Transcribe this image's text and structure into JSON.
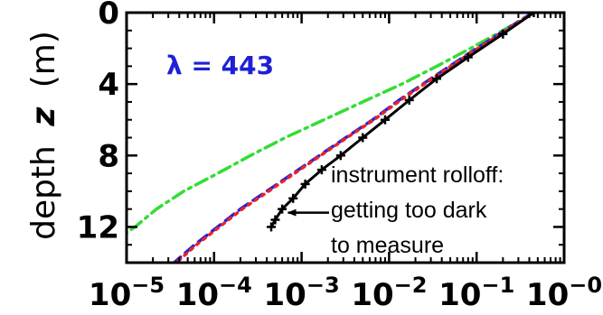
{
  "chart_data": {
    "type": "line",
    "title": "",
    "xlabel": "",
    "ylabel_prefix": "depth",
    "ylabel_symbol": "z",
    "ylabel_unit": "(m)",
    "x_scale": "log",
    "xlim": [
      1e-05,
      1
    ],
    "ylim": [
      14,
      0
    ],
    "y_inverted": true,
    "grid": false,
    "x_ticks": [
      {
        "value": 1e-05,
        "base": "10",
        "exp": "−5"
      },
      {
        "value": 0.0001,
        "base": "10",
        "exp": "−4"
      },
      {
        "value": 0.001,
        "base": "10",
        "exp": "−3"
      },
      {
        "value": 0.01,
        "base": "10",
        "exp": "−2"
      },
      {
        "value": 0.1,
        "base": "10",
        "exp": "−1"
      },
      {
        "value": 1,
        "base": "10",
        "exp": "−0"
      }
    ],
    "y_ticks": [
      {
        "value": 0,
        "label": "0"
      },
      {
        "value": 4,
        "label": "4"
      },
      {
        "value": 8,
        "label": "8"
      },
      {
        "value": 12,
        "label": "12"
      }
    ],
    "inset_label": {
      "text": "λ = 443",
      "color": "#1f1fd9"
    },
    "annotation": {
      "lines": [
        "instrument rolloff:",
        "getting too dark",
        "to measure"
      ],
      "arrow_target": {
        "x": 0.0007,
        "y": 11.2
      }
    },
    "series": [
      {
        "style": "dash-dot",
        "color": "#33dd33",
        "points": [
          {
            "x": 0.45,
            "y": 0
          },
          {
            "x": 0.2,
            "y": 1
          },
          {
            "x": 0.085,
            "y": 2
          },
          {
            "x": 0.035,
            "y": 3
          },
          {
            "x": 0.014,
            "y": 4
          },
          {
            "x": 0.005,
            "y": 5
          },
          {
            "x": 0.0018,
            "y": 6
          },
          {
            "x": 0.00065,
            "y": 7
          },
          {
            "x": 0.00026,
            "y": 8
          },
          {
            "x": 0.00011,
            "y": 9
          },
          {
            "x": 4.5e-05,
            "y": 10
          },
          {
            "x": 2.2e-05,
            "y": 11
          },
          {
            "x": 1.25e-05,
            "y": 12
          },
          {
            "x": 8.2e-06,
            "y": 12.6
          }
        ]
      },
      {
        "style": "dashed",
        "color": "#2222dd",
        "points": [
          {
            "x": 0.44,
            "y": 0
          },
          {
            "x": 0.18,
            "y": 1.2
          },
          {
            "x": 0.07,
            "y": 2.5
          },
          {
            "x": 0.03,
            "y": 3.7
          },
          {
            "x": 0.013,
            "y": 4.9
          },
          {
            "x": 0.0065,
            "y": 6
          },
          {
            "x": 0.0032,
            "y": 7
          },
          {
            "x": 0.0016,
            "y": 8
          },
          {
            "x": 0.0008,
            "y": 9
          },
          {
            "x": 0.0004,
            "y": 10
          },
          {
            "x": 0.0002,
            "y": 11
          },
          {
            "x": 0.00011,
            "y": 12
          },
          {
            "x": 6e-05,
            "y": 13
          },
          {
            "x": 3.5e-05,
            "y": 14
          }
        ]
      },
      {
        "style": "dotted",
        "color": "#ee2222",
        "points": [
          {
            "x": 0.45,
            "y": 0
          },
          {
            "x": 0.185,
            "y": 1.2
          },
          {
            "x": 0.072,
            "y": 2.5
          },
          {
            "x": 0.031,
            "y": 3.7
          },
          {
            "x": 0.0135,
            "y": 4.9
          },
          {
            "x": 0.0067,
            "y": 6
          },
          {
            "x": 0.0033,
            "y": 7
          },
          {
            "x": 0.00165,
            "y": 8
          },
          {
            "x": 0.00083,
            "y": 9
          },
          {
            "x": 0.00042,
            "y": 10
          },
          {
            "x": 0.00021,
            "y": 11
          },
          {
            "x": 0.000115,
            "y": 12
          },
          {
            "x": 6.3e-05,
            "y": 13
          },
          {
            "x": 3.7e-05,
            "y": 14
          }
        ]
      },
      {
        "style": "solid-markers",
        "color": "#000000",
        "points": [
          {
            "x": 0.45,
            "y": 0
          },
          {
            "x": 0.2,
            "y": 1.2
          },
          {
            "x": 0.08,
            "y": 2.5
          },
          {
            "x": 0.035,
            "y": 3.7
          },
          {
            "x": 0.017,
            "y": 4.9
          },
          {
            "x": 0.009,
            "y": 6
          },
          {
            "x": 0.005,
            "y": 7
          },
          {
            "x": 0.0028,
            "y": 8
          },
          {
            "x": 0.0017,
            "y": 8.8
          },
          {
            "x": 0.0011,
            "y": 9.6
          },
          {
            "x": 0.0008,
            "y": 10.4
          },
          {
            "x": 0.0006,
            "y": 11
          },
          {
            "x": 0.0005,
            "y": 11.6
          },
          {
            "x": 0.00045,
            "y": 12
          }
        ]
      }
    ]
  }
}
